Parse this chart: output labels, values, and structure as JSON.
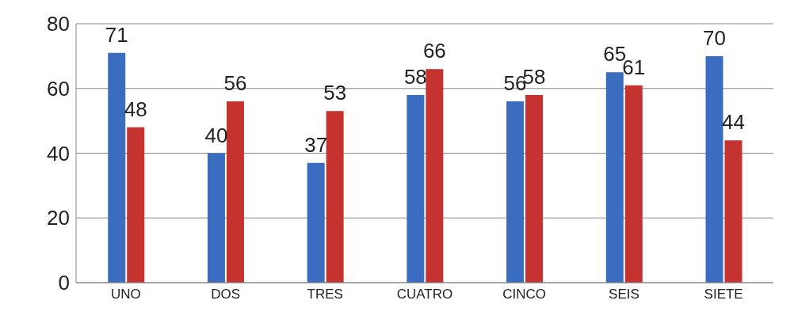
{
  "chart_data": {
    "type": "bar",
    "categories": [
      "UNO",
      "DOS",
      "TRES",
      "CUATRO",
      "CINCO",
      "SEIS",
      "SIETE"
    ],
    "series": [
      {
        "color": "#3a6cc0",
        "values": [
          71,
          40,
          37,
          58,
          56,
          65,
          70
        ]
      },
      {
        "color": "#c4332f",
        "values": [
          48,
          56,
          53,
          66,
          58,
          61,
          44
        ]
      }
    ],
    "ylim": [
      0,
      80
    ],
    "yticks": [
      0,
      20,
      40,
      60,
      80
    ],
    "grid": "y",
    "data_labels": true
  }
}
